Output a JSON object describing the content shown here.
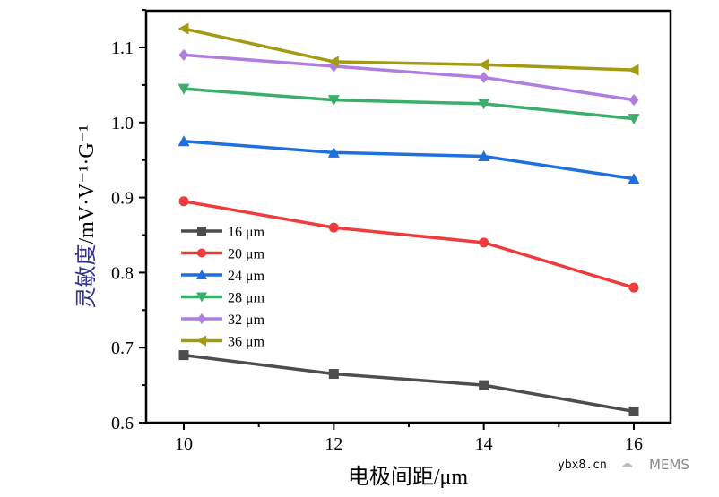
{
  "chart_data": {
    "type": "line",
    "xlabel": "电极间距/μm",
    "ylabel_cn": "灵敏度",
    "ylabel_unit": "/mV·V⁻¹·G⁻¹",
    "x": [
      10,
      12,
      14,
      16
    ],
    "xlim": [
      9.5,
      16.5
    ],
    "ylim": [
      0.6,
      1.15
    ],
    "xticks": [
      "10",
      "12",
      "14",
      "16"
    ],
    "yticks": [
      "0.6",
      "0.7",
      "0.8",
      "0.9",
      "1.0",
      "1.1"
    ],
    "grid": false,
    "legend_position": "left-center",
    "series": [
      {
        "name": "16 μm",
        "color": "#4d4d4d",
        "marker": "square",
        "values": [
          0.69,
          0.665,
          0.65,
          0.615
        ]
      },
      {
        "name": "20 μm",
        "color": "#ef3b3b",
        "marker": "circle",
        "values": [
          0.895,
          0.86,
          0.84,
          0.78
        ]
      },
      {
        "name": "24 μm",
        "color": "#1f6fdc",
        "marker": "triangle-up",
        "values": [
          0.975,
          0.96,
          0.955,
          0.925
        ]
      },
      {
        "name": "28 μm",
        "color": "#3aae6a",
        "marker": "triangle-down",
        "values": [
          1.045,
          1.03,
          1.025,
          1.005
        ]
      },
      {
        "name": "32 μm",
        "color": "#b07de0",
        "marker": "diamond",
        "values": [
          1.09,
          1.075,
          1.06,
          1.03
        ]
      },
      {
        "name": "36 μm",
        "color": "#a39b14",
        "marker": "triangle-left",
        "values": [
          1.125,
          1.081,
          1.077,
          1.07
        ]
      }
    ]
  },
  "watermark": {
    "site": "ybx8.cn",
    "account": "MEMS"
  }
}
